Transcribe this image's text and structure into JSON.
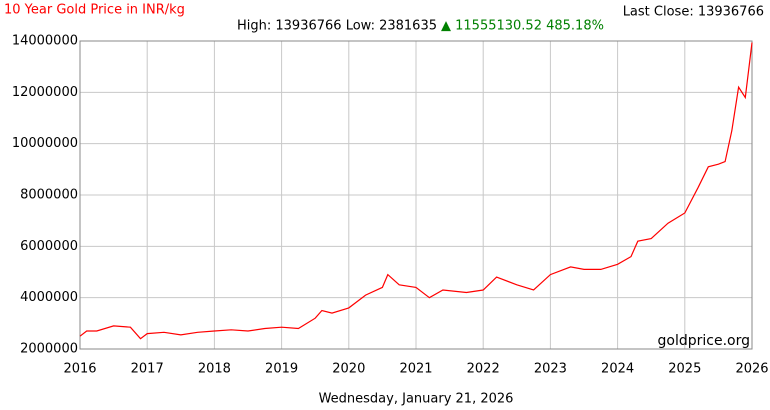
{
  "chart_data": {
    "type": "line",
    "title": "10 Year Gold Price in INR/kg",
    "last_close": "Last Close: 13936766",
    "stats": "High: 13936766 Low: 2381635",
    "change": "▲ 11555130.52 485.18%",
    "watermark": "goldprice.org",
    "date": "Wednesday, January 21, 2026",
    "x": [
      2016.0,
      2016.1,
      2016.25,
      2016.5,
      2016.75,
      2016.9,
      2017.0,
      2017.25,
      2017.5,
      2017.75,
      2018.0,
      2018.25,
      2018.5,
      2018.75,
      2019.0,
      2019.25,
      2019.5,
      2019.6,
      2019.75,
      2020.0,
      2020.25,
      2020.5,
      2020.58,
      2020.75,
      2021.0,
      2021.2,
      2021.4,
      2021.75,
      2022.0,
      2022.2,
      2022.5,
      2022.75,
      2023.0,
      2023.3,
      2023.5,
      2023.75,
      2024.0,
      2024.2,
      2024.3,
      2024.5,
      2024.75,
      2025.0,
      2025.2,
      2025.35,
      2025.5,
      2025.6,
      2025.7,
      2025.8,
      2025.9,
      2026.0
    ],
    "series": [
      {
        "name": "Gold Price INR/kg",
        "color": "#ff0000",
        "values": [
          2500000,
          2700000,
          2700000,
          2900000,
          2850000,
          2400000,
          2600000,
          2650000,
          2550000,
          2650000,
          2700000,
          2750000,
          2700000,
          2800000,
          2850000,
          2800000,
          3200000,
          3500000,
          3400000,
          3600000,
          4100000,
          4400000,
          4900000,
          4500000,
          4400000,
          4000000,
          4300000,
          4200000,
          4300000,
          4800000,
          4500000,
          4300000,
          4900000,
          5200000,
          5100000,
          5100000,
          5300000,
          5600000,
          6200000,
          6300000,
          6900000,
          7300000,
          8300000,
          9100000,
          9200000,
          9300000,
          10500000,
          12200000,
          11800000,
          13936766
        ]
      }
    ],
    "xlim": [
      2016,
      2026
    ],
    "xticks": [
      2016,
      2017,
      2018,
      2019,
      2020,
      2021,
      2022,
      2023,
      2024,
      2025,
      2026
    ],
    "ylim": [
      2000000,
      14000000
    ],
    "yticks": [
      2000000,
      4000000,
      6000000,
      8000000,
      10000000,
      12000000,
      14000000
    ],
    "grid": true
  }
}
